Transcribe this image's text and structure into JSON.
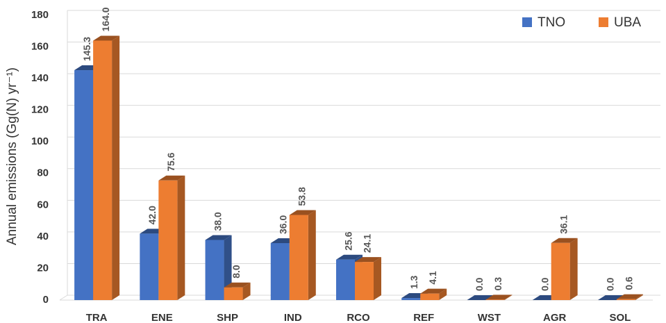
{
  "chart_data": {
    "type": "bar3d",
    "y_label": "Annual emissions (Gg(N) yr⁻¹)",
    "categories": [
      "TRA",
      "ENE",
      "SHP",
      "IND",
      "RCO",
      "REF",
      "WST",
      "AGR",
      "SOL"
    ],
    "series": [
      {
        "name": "TNO",
        "color": "#4472c4",
        "values": [
          145.3,
          42.0,
          38.0,
          36.0,
          25.6,
          1.3,
          0.0,
          0.0,
          0.0
        ],
        "value_labels": [
          "145.3",
          "42.0",
          "38.0",
          "36.0",
          "25.6",
          "1.3",
          "0.0",
          "0.0",
          "0.0"
        ]
      },
      {
        "name": "UBA",
        "color": "#ed7d31",
        "values": [
          164.0,
          75.6,
          8.0,
          53.8,
          24.1,
          4.1,
          0.3,
          36.1,
          0.6
        ],
        "value_labels": [
          "164.0",
          "75.6",
          "8.0",
          "53.8",
          "24.1",
          "4.1",
          "0.3",
          "36.1",
          "0.6"
        ]
      }
    ],
    "ylim": [
      0,
      180
    ],
    "yticks": [
      0,
      20,
      40,
      60,
      80,
      100,
      120,
      140,
      160,
      180
    ],
    "grid": true,
    "legend": "top-right"
  }
}
